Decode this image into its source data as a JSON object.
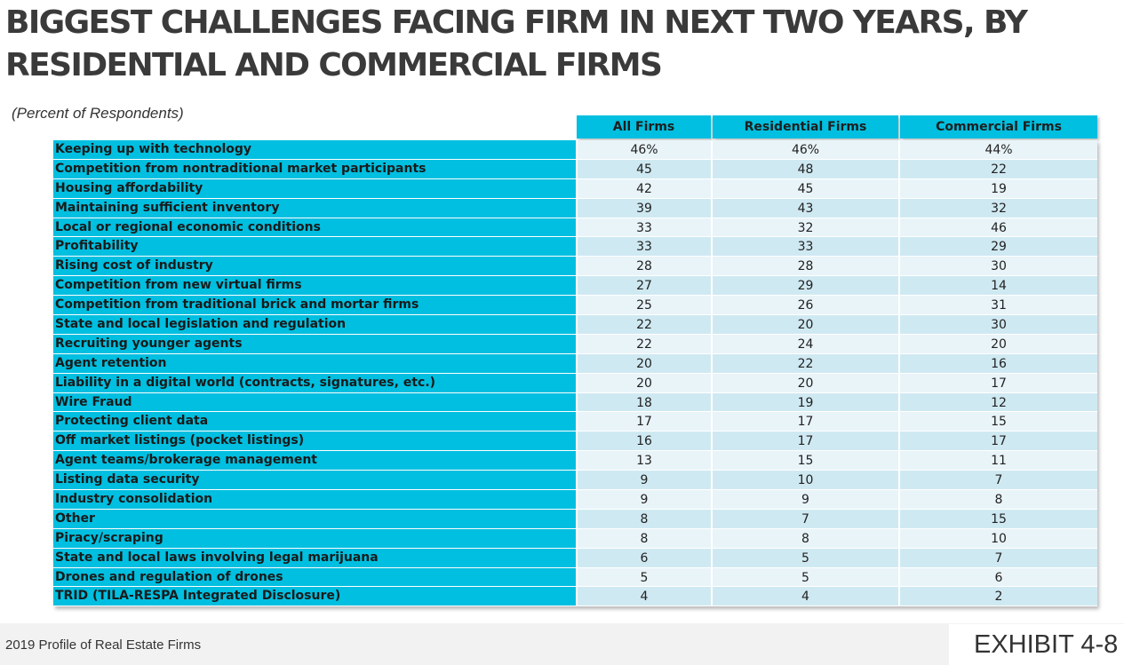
{
  "title": "BIGGEST CHALLENGES FACING FIRM IN NEXT TWO YEARS, BY RESIDENTIAL AND COMMERCIAL FIRMS",
  "subtitle": "(Percent of Respondents)",
  "footer": {
    "source": "2019 Profile of Real Estate Firms",
    "exhibit": "EXHIBIT 4-8"
  },
  "colors": {
    "header_bg": "#00bfe0",
    "row_light": "#e9f4f9",
    "row_dark": "#cfe9f2",
    "footer_bg": "#f2f2f2"
  },
  "chart_data": {
    "type": "table",
    "columns": [
      "All Firms",
      "Residential Firms",
      "Commercial Firms"
    ],
    "rows": [
      {
        "label": "Keeping up with technology",
        "values": [
          "46%",
          "46%",
          "44%"
        ]
      },
      {
        "label": "Competition from nontraditional market participants",
        "values": [
          "45",
          "48",
          "22"
        ]
      },
      {
        "label": "Housing affordability",
        "values": [
          "42",
          "45",
          "19"
        ]
      },
      {
        "label": "Maintaining sufficient inventory",
        "values": [
          "39",
          "43",
          "32"
        ]
      },
      {
        "label": "Local or regional economic conditions",
        "values": [
          "33",
          "32",
          "46"
        ]
      },
      {
        "label": "Profitability",
        "values": [
          "33",
          "33",
          "29"
        ]
      },
      {
        "label": "Rising cost of industry",
        "values": [
          "28",
          "28",
          "30"
        ]
      },
      {
        "label": "Competition from new virtual firms",
        "values": [
          "27",
          "29",
          "14"
        ]
      },
      {
        "label": "Competition from traditional brick and mortar firms",
        "values": [
          "25",
          "26",
          "31"
        ]
      },
      {
        "label": "State and local legislation and regulation",
        "values": [
          "22",
          "20",
          "30"
        ]
      },
      {
        "label": "Recruiting younger agents",
        "values": [
          "22",
          "24",
          "20"
        ]
      },
      {
        "label": "Agent retention",
        "values": [
          "20",
          "22",
          "16"
        ]
      },
      {
        "label": "Liability in a digital world (contracts, signatures, etc.)",
        "values": [
          "20",
          "20",
          "17"
        ]
      },
      {
        "label": "Wire Fraud",
        "values": [
          "18",
          "19",
          "12"
        ]
      },
      {
        "label": "Protecting client data",
        "values": [
          "17",
          "17",
          "15"
        ]
      },
      {
        "label": "Off market listings (pocket listings)",
        "values": [
          "16",
          "17",
          "17"
        ]
      },
      {
        "label": "Agent teams/brokerage management",
        "values": [
          "13",
          "15",
          "11"
        ]
      },
      {
        "label": "Listing data security",
        "values": [
          "9",
          "10",
          "7"
        ]
      },
      {
        "label": "Industry consolidation",
        "values": [
          "9",
          "9",
          "8"
        ]
      },
      {
        "label": "Other",
        "values": [
          "8",
          "7",
          "15"
        ]
      },
      {
        "label": "Piracy/scraping",
        "values": [
          "8",
          "8",
          "10"
        ]
      },
      {
        "label": "State and local laws involving legal marijuana",
        "values": [
          "6",
          "5",
          "7"
        ]
      },
      {
        "label": "Drones and regulation of drones",
        "values": [
          "5",
          "5",
          "6"
        ]
      },
      {
        "label": "TRID (TILA-RESPA Integrated Disclosure)",
        "values": [
          "4",
          "4",
          "2"
        ]
      }
    ]
  }
}
